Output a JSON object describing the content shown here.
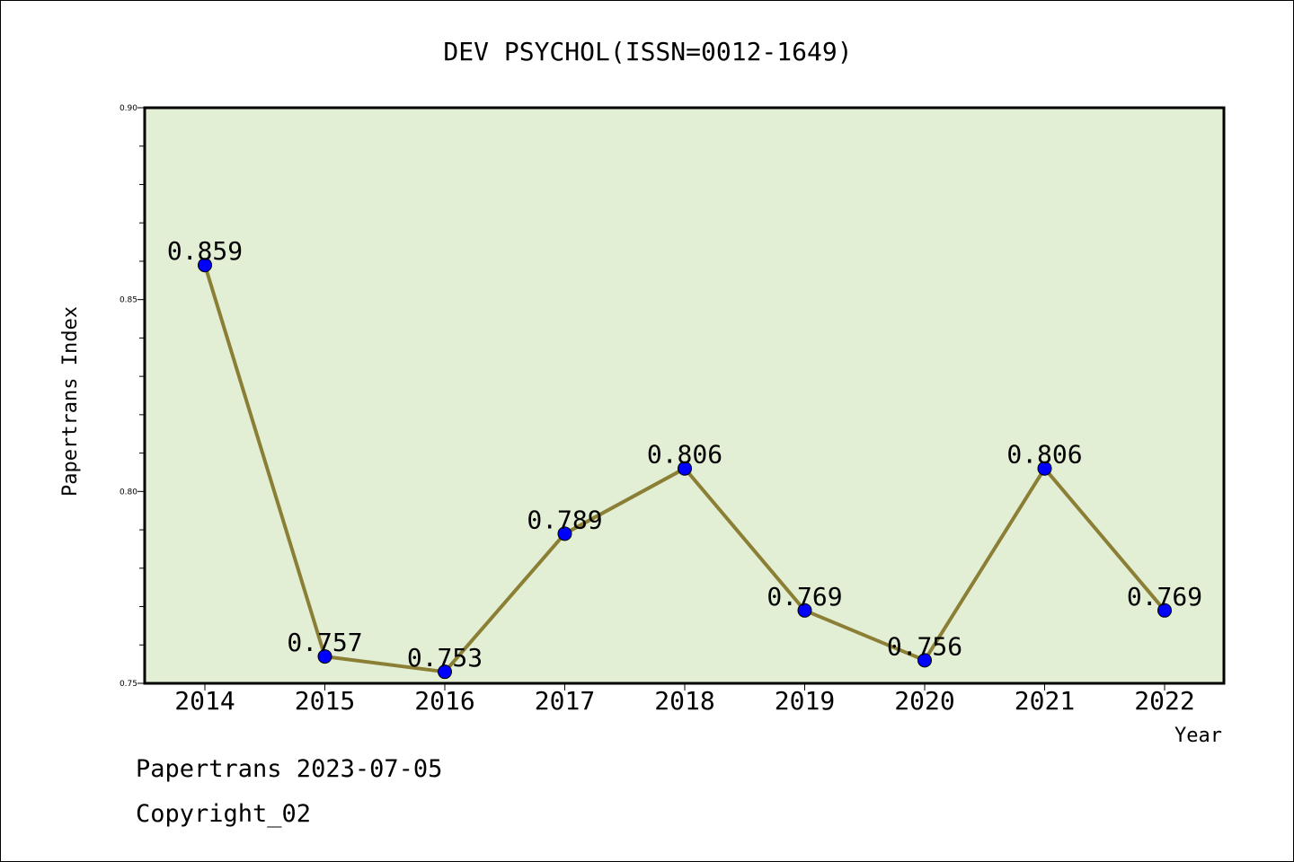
{
  "chart_data": {
    "type": "line",
    "title": "DEV PSYCHOL(ISSN=0012-1649)",
    "xlabel": "Year",
    "ylabel": "Papertrans Index",
    "categories": [
      "2014",
      "2015",
      "2016",
      "2017",
      "2018",
      "2019",
      "2020",
      "2021",
      "2022"
    ],
    "values": [
      0.859,
      0.757,
      0.753,
      0.789,
      0.806,
      0.769,
      0.756,
      0.806,
      0.769
    ],
    "data_labels": [
      "0.859",
      "0.757",
      "0.753",
      "0.789",
      "0.806",
      "0.769",
      "0.756",
      "0.806",
      "0.769"
    ],
    "ylim": [
      0.75,
      0.9
    ],
    "yticks": [
      0.75,
      0.8,
      0.85,
      0.9
    ],
    "ytick_labels": [
      "0.75",
      "0.80",
      "0.85",
      "0.90"
    ],
    "grid": false,
    "colors": {
      "plot_background": "#e2efd5",
      "line": "#8b7f35",
      "marker": "#0000ff"
    }
  },
  "footer": {
    "line1": "Papertrans 2023-07-05",
    "line2": "Copyright_02"
  }
}
